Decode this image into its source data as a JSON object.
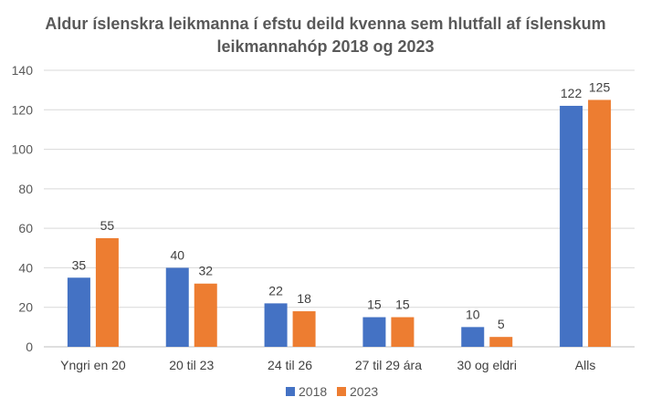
{
  "chart_data": {
    "type": "bar",
    "title_line1": "Aldur íslenskra leikmanna í efstu deild kvenna sem hlutfall af  íslenskum",
    "title_line2": "leikmannahóp 2018 og 2023",
    "categories": [
      "Yngri en 20",
      "20 til 23",
      "24 til 26",
      "27 til 29 ára",
      "30 og eldri",
      "Alls"
    ],
    "series": [
      {
        "name": "2018",
        "color": "#4472C4",
        "values": [
          35,
          40,
          22,
          15,
          10,
          122
        ]
      },
      {
        "name": "2023",
        "color": "#ED7D31",
        "values": [
          55,
          32,
          18,
          15,
          5,
          125
        ]
      }
    ],
    "ylim": [
      0,
      140
    ],
    "yticks": [
      0,
      20,
      40,
      60,
      80,
      100,
      120,
      140
    ],
    "grid": true,
    "legend": "bottom"
  }
}
